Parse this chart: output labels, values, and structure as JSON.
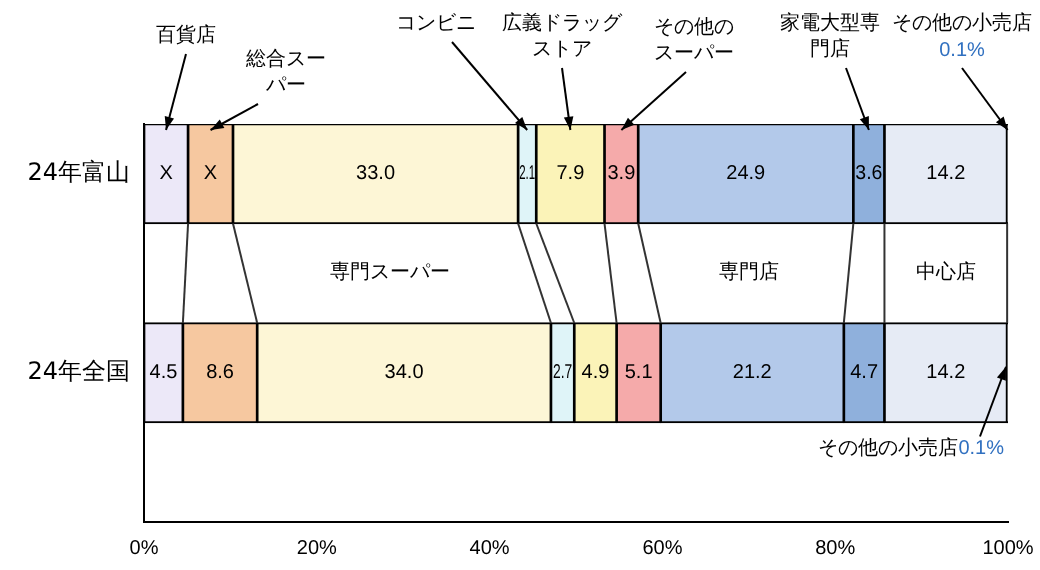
{
  "chart_data": {
    "type": "bar",
    "orientation": "horizontal",
    "stacked": true,
    "categories": [
      "24年富山",
      null,
      "24年全国",
      null
    ],
    "series": [
      {
        "name": "百貨店",
        "color": "#ece8f8",
        "values": [
          5.1,
          null,
          4.5,
          null
        ],
        "value_labels": [
          "X",
          null,
          "4.5",
          null
        ]
      },
      {
        "name": "総合スーパー",
        "color": "#f6c8a0",
        "values": [
          5.2,
          null,
          8.6,
          null
        ],
        "value_labels": [
          "X",
          null,
          "8.6",
          null
        ]
      },
      {
        "name": "専門スーパー",
        "color": "#fdf6d6",
        "values": [
          33.0,
          null,
          34.0,
          null
        ],
        "value_labels": [
          "33.0",
          null,
          "34.0",
          null
        ]
      },
      {
        "name": "コンビニ",
        "color": "#dff4f8",
        "values": [
          2.1,
          null,
          2.7,
          null
        ],
        "value_labels": [
          "2.1",
          null,
          "2.7",
          null
        ]
      },
      {
        "name": "広義ドラッグストア",
        "color": "#fbf3b8",
        "values": [
          7.9,
          null,
          4.9,
          null
        ],
        "value_labels": [
          "7.9",
          null,
          "4.9",
          null
        ]
      },
      {
        "name": "その他のスーパー",
        "color": "#f5aaaa",
        "values": [
          3.9,
          null,
          5.1,
          null
        ],
        "value_labels": [
          "3.9",
          null,
          "5.1",
          null
        ]
      },
      {
        "name": "専門店",
        "color": "#b3c9ea",
        "values": [
          24.9,
          null,
          21.2,
          null
        ],
        "value_labels": [
          "24.9",
          null,
          "21.2",
          null
        ]
      },
      {
        "name": "家電大型専門店",
        "color": "#8fb0dc",
        "values": [
          3.6,
          null,
          4.7,
          null
        ],
        "value_labels": [
          "3.6",
          null,
          "4.7",
          null
        ]
      },
      {
        "name": "中心店",
        "color": "#e6ebf5",
        "values": [
          14.2,
          null,
          14.2,
          null
        ],
        "value_labels": [
          "14.2",
          null,
          "14.2",
          null
        ]
      },
      {
        "name": "その他の小売店",
        "color": "#ffffff",
        "values": [
          0.1,
          null,
          0.1,
          null
        ],
        "value_labels": [
          "0.1%",
          null,
          "0.1%",
          null
        ]
      }
    ],
    "annotations": [
      "その他の小売店"
    ],
    "xlim": [
      0,
      100
    ],
    "xticks": [
      {
        "value": 0,
        "label": "0%"
      },
      {
        "value": 20,
        "label": "20%"
      },
      {
        "value": 40,
        "label": "40%"
      },
      {
        "value": 60,
        "label": "60%"
      },
      {
        "value": 80,
        "label": "80%"
      },
      {
        "value": 100,
        "label": "100%"
      }
    ],
    "grid": false,
    "legend": false
  }
}
